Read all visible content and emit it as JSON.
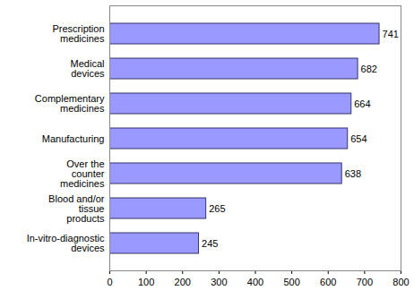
{
  "chart_data": {
    "type": "bar",
    "orientation": "horizontal",
    "categories": [
      "Prescription medicines",
      "Medical devices",
      "Complementary medicines",
      "Manufacturing",
      "Over the counter medicines",
      "Blood and/or tissue products",
      "In-vitro-diagnostic devices"
    ],
    "values": [
      741,
      682,
      664,
      654,
      638,
      265,
      245
    ],
    "color": "#9999ff",
    "xlim": [
      0,
      800
    ],
    "xticks": [
      0,
      100,
      200,
      300,
      400,
      500,
      600,
      700,
      800
    ],
    "grid": false,
    "data_labels": true
  }
}
